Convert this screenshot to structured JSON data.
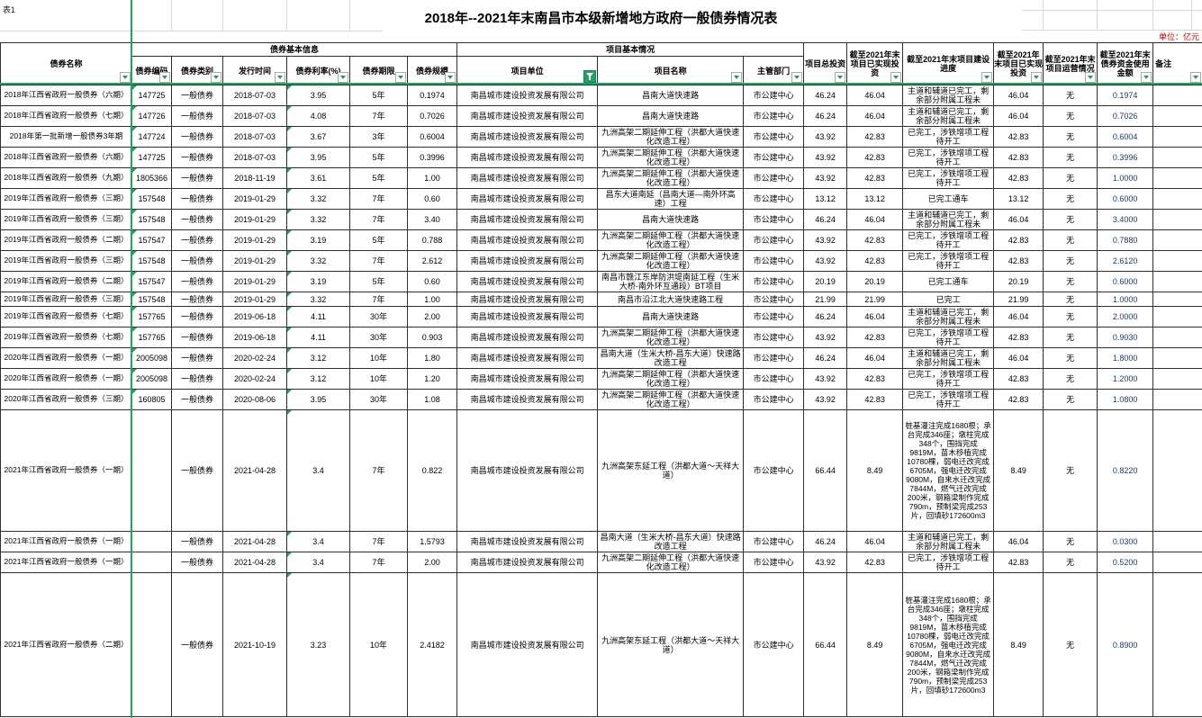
{
  "sheet": {
    "corner_label": "表1",
    "title": "2018年--2021年末南昌市本级新增地方政府一般债券情况表",
    "unit_note": "单位：亿元"
  },
  "colors": {
    "accent_green": "#21a366",
    "freeze_line": "#1fa463",
    "unit_note_red": "#c00000",
    "amount_navy": "#17375e"
  },
  "icons": {
    "filter_active": "funnel-icon",
    "filter_dropdown": "chevron-down-icon"
  },
  "table": {
    "groups": [
      {
        "label": "债券基本信息"
      },
      {
        "label": "项目基本情况"
      }
    ],
    "columns": [
      "债券名称",
      "债券编码",
      "债券类别",
      "发行时间",
      "债券利率(%)",
      "债券期限",
      "债券规模",
      "项目单位",
      "项目名称",
      "主管部门",
      "项目总投资",
      "截至2021年末项目已实现投资",
      "截至2021年末项目建设进度",
      "截至2021年末项目已实现投资",
      "截至2021年末项目运营情况",
      "截至2021年末债券资金使用金额",
      "备注"
    ],
    "column_keys": [
      "bond-name",
      "bond-code",
      "bond-type",
      "issue-date",
      "rate",
      "term",
      "scale",
      "project-unit",
      "project-name",
      "department",
      "total-investment",
      "realized-investment",
      "construction-progress",
      "realized-investment-2",
      "operation-status",
      "bond-fund-used",
      "remark"
    ],
    "rows": [
      [
        "2018年江西省政府一般债券（六期）",
        "147725",
        "一般债券",
        "2018-07-03",
        "3.95",
        "5年",
        "0.1974",
        "南昌城市建设投资发展有限公司",
        "昌南大道快速路",
        "市公建中心",
        "46.24",
        "46.04",
        "主道和辅道已完工，剩余部分附属工程未",
        "46.04",
        "无",
        "0.1974",
        ""
      ],
      [
        "2018年江西省政府一般债券（七期）",
        "147726",
        "一般债券",
        "2018-07-03",
        "4.08",
        "7年",
        "0.7026",
        "南昌城市建设投资发展有限公司",
        "昌南大道快速路",
        "市公建中心",
        "46.24",
        "46.04",
        "主道和辅道已完工，剩余部分附属工程未",
        "46.04",
        "无",
        "0.7026",
        ""
      ],
      [
        "2018年第一批新增一般债券3年期",
        "147724",
        "一般债券",
        "2018-07-03",
        "3.67",
        "3年",
        "0.6004",
        "南昌城市建设投资发展有限公司",
        "九洲高架二期延伸工程（洪都大道快速化改造工程）",
        "市公建中心",
        "43.92",
        "42.83",
        "已完工，涉铁增项工程待开工",
        "42.83",
        "无",
        "0.6004",
        ""
      ],
      [
        "2018年江西省政府一般债券（六期）",
        "147725",
        "一般债券",
        "2018-07-03",
        "3.95",
        "5年",
        "0.3996",
        "南昌城市建设投资发展有限公司",
        "九洲高架二期延伸工程（洪都大道快速化改造工程）",
        "市公建中心",
        "43.92",
        "42.83",
        "已完工，涉铁增项工程待开工",
        "42.83",
        "无",
        "0.3996",
        ""
      ],
      [
        "2018年江西省政府一般债券（九期）",
        "1805366",
        "一般债券",
        "2018-11-19",
        "3.61",
        "5年",
        "1.00",
        "南昌城市建设投资发展有限公司",
        "九洲高架二期延伸工程（洪都大道快速化改造工程）",
        "市公建中心",
        "43.92",
        "42.83",
        "已完工，涉铁增项工程待开工",
        "42.83",
        "无",
        "1.0000",
        ""
      ],
      [
        "2019年江西省政府一般债券（三期）",
        "157548",
        "一般债券",
        "2019-01-29",
        "3.32",
        "7年",
        "0.60",
        "南昌城市建设投资发展有限公司",
        "昌东大道南延（昌南大道—南外环高速）工程",
        "市公建中心",
        "13.12",
        "13.12",
        "已完工通车",
        "13.12",
        "无",
        "0.6000",
        ""
      ],
      [
        "2019年江西省政府一般债券（三期）",
        "157548",
        "一般债券",
        "2019-01-29",
        "3.32",
        "7年",
        "3.40",
        "南昌城市建设投资发展有限公司",
        "昌南大道快速路",
        "市公建中心",
        "46.24",
        "46.04",
        "主道和辅道已完工，剩余部分附属工程未",
        "46.04",
        "无",
        "3.4000",
        ""
      ],
      [
        "2019年江西省政府一般债券（二期）",
        "157547",
        "一般债券",
        "2019-01-29",
        "3.19",
        "5年",
        "0.788",
        "南昌城市建设投资发展有限公司",
        "九洲高架二期延伸工程（洪都大道快速化改造工程）",
        "市公建中心",
        "43.92",
        "42.83",
        "已完工，涉铁增项工程待开工",
        "42.83",
        "无",
        "0.7880",
        ""
      ],
      [
        "2019年江西省政府一般债券（三期）",
        "157548",
        "一般债券",
        "2019-01-29",
        "3.32",
        "7年",
        "2.612",
        "南昌城市建设投资发展有限公司",
        "九洲高架二期延伸工程（洪都大道快速化改造工程）",
        "市公建中心",
        "43.92",
        "42.83",
        "已完工，涉铁增项工程待开工",
        "42.83",
        "无",
        "2.6120",
        ""
      ],
      [
        "2019年江西省政府一般债券（二期）",
        "157547",
        "一般债券",
        "2019-01-29",
        "3.19",
        "5年",
        "0.60",
        "南昌城市建设投资发展有限公司",
        "南昌市赣江东岸防洪堤南延工程（生米大桥-南外环互通段）BT项目",
        "市公建中心",
        "20.19",
        "20.19",
        "已完工通车",
        "20.19",
        "无",
        "0.6000",
        ""
      ],
      [
        "2019年江西省政府一般债券（三期）",
        "157548",
        "一般债券",
        "2019-01-29",
        "3.32",
        "7年",
        "1.00",
        "南昌城市建设投资发展有限公司",
        "南昌市沿江北大道快速路工程",
        "市公建中心",
        "21.99",
        "21.99",
        "已完工",
        "21.99",
        "无",
        "1.0000",
        ""
      ],
      [
        "2019年江西省政府一般债券（七期）",
        "157765",
        "一般债券",
        "2019-06-18",
        "4.11",
        "30年",
        "2.00",
        "南昌城市建设投资发展有限公司",
        "昌南大道快速路",
        "市公建中心",
        "46.24",
        "46.04",
        "主道和辅道已完工，剩余部分附属工程未",
        "46.04",
        "无",
        "2.0000",
        ""
      ],
      [
        "2019年江西省政府一般债券（七期）",
        "157765",
        "一般债券",
        "2019-06-18",
        "4.11",
        "30年",
        "0.903",
        "南昌城市建设投资发展有限公司",
        "九洲高架二期延伸工程（洪都大道快速化改造工程）",
        "市公建中心",
        "43.92",
        "42.83",
        "已完工，涉铁增项工程待开工",
        "42.83",
        "无",
        "0.9030",
        ""
      ],
      [
        "2020年江西省政府一般债券（一期）",
        "2005098",
        "一般债券",
        "2020-02-24",
        "3.12",
        "10年",
        "1.80",
        "南昌城市建设投资发展有限公司",
        "昌南大道（生米大桥-昌东大道）快速路改造工程",
        "市公建中心",
        "46.24",
        "46.04",
        "主道和辅道已完工，剩余部分附属工程未",
        "46.04",
        "无",
        "1.8000",
        ""
      ],
      [
        "2020年江西省政府一般债券（一期）",
        "2005098",
        "一般债券",
        "2020-02-24",
        "3.12",
        "10年",
        "1.20",
        "南昌城市建设投资发展有限公司",
        "九洲高架二期延伸工程（洪都大道快速化改造工程）",
        "市公建中心",
        "43.92",
        "42.83",
        "已完工，涉铁增项工程待开工",
        "42.83",
        "无",
        "1.2000",
        ""
      ],
      [
        "2020年江西省政府一般债券（三期）",
        "160805",
        "一般债券",
        "2020-08-06",
        "3.95",
        "30年",
        "1.08",
        "南昌城市建设投资发展有限公司",
        "九洲高架二期延伸工程（洪都大道快速化改造工程）",
        "市公建中心",
        "43.92",
        "42.83",
        "已完工，涉铁增项工程待开工",
        "42.83",
        "无",
        "1.0800",
        ""
      ],
      [
        "2021年江西省政府一般债券（一期）",
        "",
        "一般债券",
        "2021-04-28",
        "3.4",
        "7年",
        "0.822",
        "南昌城市建设投资发展有限公司",
        "九洲高架东延工程（洪都大道～天祥大道）",
        "市公建中心",
        "66.44",
        "8.49",
        "桩基灌注完成1680根；承台完成346座；墩柱完成348个，围挡完成9819M，苗木移植完成10780棵，弱电迁改完成6705M，强电迁改完成9080M，自来水迁改完成7844M，燃气迁改完成200米，钢箱梁制作完成790m，预制梁完成253片，回填砂172600m3",
        "8.49",
        "无",
        "0.8220",
        ""
      ],
      [
        "2021年江西省政府一般债券（一期）",
        "",
        "一般债券",
        "2021-04-28",
        "3.4",
        "7年",
        "1.5793",
        "南昌城市建设投资发展有限公司",
        "昌南大道（生米大桥-昌东大道）快速路改造工程",
        "市公建中心",
        "46.24",
        "46.04",
        "主道和辅道已完工，剩余部分附属工程未",
        "46.04",
        "无",
        "0.0300",
        ""
      ],
      [
        "2021年江西省政府一般债券（一期）",
        "",
        "一般债券",
        "2021-04-28",
        "3.4",
        "7年",
        "2.00",
        "南昌城市建设投资发展有限公司",
        "九洲高架二期延伸工程（洪都大道快速化改造工程）",
        "市公建中心",
        "43.92",
        "42.83",
        "已完工，涉铁增项工程待开工",
        "42.83",
        "无",
        "0.5200",
        ""
      ],
      [
        "2021年江西省政府一般债券（二期）",
        "",
        "一般债券",
        "2021-10-19",
        "3.23",
        "10年",
        "2.4182",
        "南昌城市建设投资发展有限公司",
        "九洲高架东延工程（洪都大道～天祥大道）",
        "市公建中心",
        "66.44",
        "8.49",
        "桩基灌注完成1680根；承台完成346座；墩柱完成348个，围挡完成9819M，苗木移植完成10780棵，弱电迁改完成6705M，强电迁改完成9080M，自来水迁改完成7844M，燃气迁改完成200米，钢箱梁制作完成790m，预制梁完成253片，回填砂172600m3",
        "8.49",
        "无",
        "0.8900",
        ""
      ]
    ]
  }
}
